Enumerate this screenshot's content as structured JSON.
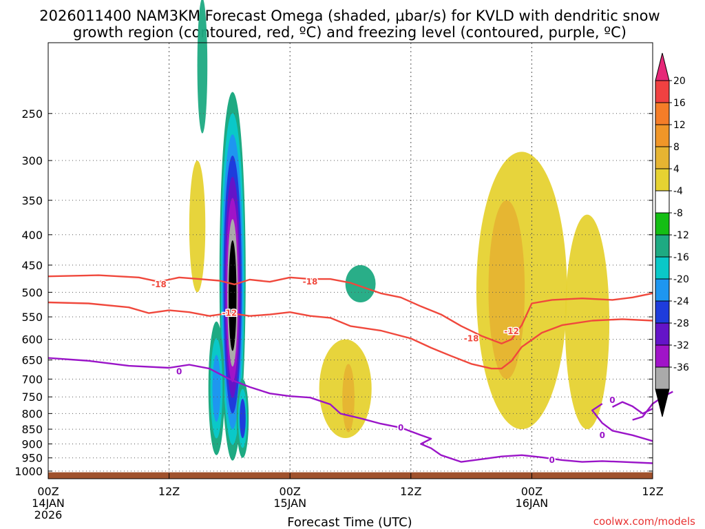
{
  "title": {
    "line1": "2026011400 NAM3KM Forecast Omega (shaded, μbar/s) for KVLD with dendritic snow",
    "line2": "growth region (contoured, red, ºC) and freezing level (contoured, purple, ºC)"
  },
  "credit": "coolwx.com/models",
  "colors": {
    "red_contour": "#f0483c",
    "purple_contour": "#9a14c8",
    "ground": "#a0522d",
    "credit": "#e83232"
  },
  "chart_data": {
    "type": "heatmap",
    "xlabel": "Forecast Time (UTC)",
    "ylabel": "",
    "x_ticks": [
      {
        "hour": 0,
        "label": [
          "00Z",
          "14JAN",
          "2026"
        ]
      },
      {
        "hour": 12,
        "label": [
          "12Z"
        ]
      },
      {
        "hour": 24,
        "label": [
          "00Z",
          "15JAN"
        ]
      },
      {
        "hour": 36,
        "label": [
          "12Z"
        ]
      },
      {
        "hour": 48,
        "label": [
          "00Z",
          "16JAN"
        ]
      },
      {
        "hour": 60,
        "label": [
          "12Z"
        ]
      }
    ],
    "xlim": [
      0,
      60
    ],
    "y_ticks": [
      250,
      300,
      350,
      400,
      450,
      500,
      550,
      600,
      650,
      700,
      750,
      800,
      850,
      900,
      950,
      1000
    ],
    "ylim": [
      1030,
      190
    ],
    "y_scale": "log-pressure",
    "grid": true,
    "colorbar": {
      "labels": [
        "20",
        "16",
        "12",
        "8",
        "4",
        "-4",
        "-8",
        "-12",
        "-16",
        "-20",
        "-24",
        "-28",
        "-32",
        "-36"
      ],
      "colors": [
        "#e62878",
        "#f04141",
        "#f57d28",
        "#f09628",
        "#e6b432",
        "#e6d232",
        "#ffffff",
        "#14be14",
        "#1eaa82",
        "#0ac8c8",
        "#1e96f0",
        "#1e3cdc",
        "#6414c8",
        "#a014c8",
        "#aaaaaa",
        "#000000"
      ],
      "placement": "right"
    },
    "contours": [
      {
        "name": "-18",
        "color": "#f0483c",
        "points": [
          [
            0,
            470
          ],
          [
            5,
            468
          ],
          [
            9,
            472
          ],
          [
            11,
            480
          ],
          [
            13,
            472
          ],
          [
            15,
            475
          ],
          [
            17,
            478
          ],
          [
            18.5,
            485
          ],
          [
            20,
            476
          ],
          [
            22,
            480
          ],
          [
            24,
            472
          ],
          [
            26,
            475
          ],
          [
            28,
            475
          ],
          [
            30,
            482
          ],
          [
            33,
            502
          ],
          [
            35,
            510
          ],
          [
            37,
            528
          ],
          [
            39,
            545
          ],
          [
            41,
            570
          ],
          [
            43,
            592
          ],
          [
            45,
            610
          ],
          [
            46,
            600
          ],
          [
            47,
            568
          ],
          [
            48,
            522
          ],
          [
            50,
            515
          ],
          [
            53,
            512
          ],
          [
            56,
            515
          ],
          [
            58,
            510
          ],
          [
            60,
            502
          ]
        ],
        "labels": [
          [
            11,
            485
          ],
          [
            26,
            480
          ],
          [
            42,
            598
          ]
        ]
      },
      {
        "name": "-12",
        "color": "#f0483c",
        "points": [
          [
            0,
            520
          ],
          [
            4,
            522
          ],
          [
            8,
            530
          ],
          [
            10,
            542
          ],
          [
            12,
            536
          ],
          [
            14,
            540
          ],
          [
            16,
            548
          ],
          [
            18,
            542
          ],
          [
            20,
            548
          ],
          [
            22,
            545
          ],
          [
            24,
            540
          ],
          [
            26,
            548
          ],
          [
            28,
            552
          ],
          [
            30,
            570
          ],
          [
            33,
            580
          ],
          [
            36,
            598
          ],
          [
            38,
            620
          ],
          [
            40,
            640
          ],
          [
            42,
            660
          ],
          [
            44,
            672
          ],
          [
            45,
            672
          ],
          [
            46,
            652
          ],
          [
            47,
            618
          ],
          [
            49,
            585
          ],
          [
            51,
            568
          ],
          [
            54,
            558
          ],
          [
            57,
            555
          ],
          [
            60,
            558
          ]
        ],
        "labels": [
          [
            18,
            542
          ],
          [
            46,
            582
          ]
        ]
      },
      {
        "name": "0",
        "color": "#9a14c8",
        "points": [
          [
            0,
            645
          ],
          [
            4,
            652
          ],
          [
            8,
            665
          ],
          [
            12,
            670
          ],
          [
            14,
            662
          ],
          [
            16,
            672
          ],
          [
            18,
            700
          ],
          [
            20,
            722
          ],
          [
            22,
            740
          ],
          [
            24,
            748
          ],
          [
            26,
            752
          ],
          [
            28,
            772
          ],
          [
            29,
            800
          ],
          [
            31,
            815
          ],
          [
            33,
            832
          ],
          [
            35,
            845
          ],
          [
            37,
            870
          ],
          [
            38,
            882
          ],
          [
            37,
            900
          ],
          [
            38,
            915
          ],
          [
            39,
            940
          ],
          [
            41,
            965
          ],
          [
            43,
            955
          ],
          [
            45,
            945
          ],
          [
            47,
            940
          ],
          [
            49,
            948
          ],
          [
            51,
            958
          ],
          [
            53,
            965
          ],
          [
            55,
            962
          ],
          [
            57,
            965
          ],
          [
            60,
            970
          ]
        ],
        "labels": [
          [
            13,
            680
          ],
          [
            35,
            845
          ],
          [
            50,
            958
          ]
        ]
      },
      {
        "name": "0",
        "color": "#9a14c8",
        "points": [
          [
            55,
            770
          ],
          [
            54,
            790
          ],
          [
            55,
            830
          ],
          [
            56,
            855
          ],
          [
            58,
            870
          ],
          [
            60,
            890
          ]
        ],
        "labels": [
          [
            55,
            870
          ]
        ]
      },
      {
        "name": "0",
        "color": "#9a14c8",
        "points": [
          [
            56,
            780
          ],
          [
            57,
            765
          ],
          [
            58,
            778
          ],
          [
            59,
            800
          ],
          [
            60,
            785
          ]
        ],
        "labels": [
          [
            56,
            760
          ]
        ]
      },
      {
        "name": "0",
        "color": "#9a14c8",
        "points": [
          [
            58,
            820
          ],
          [
            59,
            810
          ],
          [
            60,
            770
          ],
          [
            61,
            750
          ],
          [
            62,
            735
          ]
        ],
        "labels": []
      }
    ],
    "omega_cells": [
      {
        "name": "main-ascent-core",
        "x": 18.3,
        "p_top": 230,
        "p_bot": 960,
        "w": 1.3,
        "level": -36
      },
      {
        "name": "left-ascent-band",
        "x": 16.7,
        "p_top": 560,
        "p_bot": 940,
        "w": 0.8,
        "level": -16
      },
      {
        "name": "upper-green-streak",
        "x": 15.3,
        "p_top": 160,
        "p_bot": 270,
        "w": 0.5,
        "level": -8
      },
      {
        "name": "lower-right-ascent",
        "x": 19.3,
        "p_top": 700,
        "p_bot": 950,
        "w": 0.6,
        "level": -20
      },
      {
        "name": "right-descent-envelope",
        "x": 47.0,
        "p_top": 290,
        "p_bot": 850,
        "w": 4.5,
        "level": 4
      },
      {
        "name": "right-descent-core",
        "x": 45.5,
        "p_top": 350,
        "p_bot": 700,
        "w": 1.8,
        "level": 8
      },
      {
        "name": "far-right-descent",
        "x": 53.5,
        "p_top": 370,
        "p_bot": 850,
        "w": 2.2,
        "level": 4
      },
      {
        "name": "mid-descent",
        "x": 29.5,
        "p_top": 600,
        "p_bot": 880,
        "w": 2.6,
        "level": 4
      },
      {
        "name": "mid-descent-core",
        "x": 29.8,
        "p_top": 660,
        "p_bot": 860,
        "w": 0.6,
        "level": 8
      },
      {
        "name": "upper-descent",
        "x": 14.8,
        "p_top": 300,
        "p_bot": 500,
        "w": 0.8,
        "level": 4
      },
      {
        "name": "green-mid-blob",
        "x": 31.0,
        "p_top": 450,
        "p_bot": 520,
        "w": 1.5,
        "level": -8
      }
    ]
  }
}
